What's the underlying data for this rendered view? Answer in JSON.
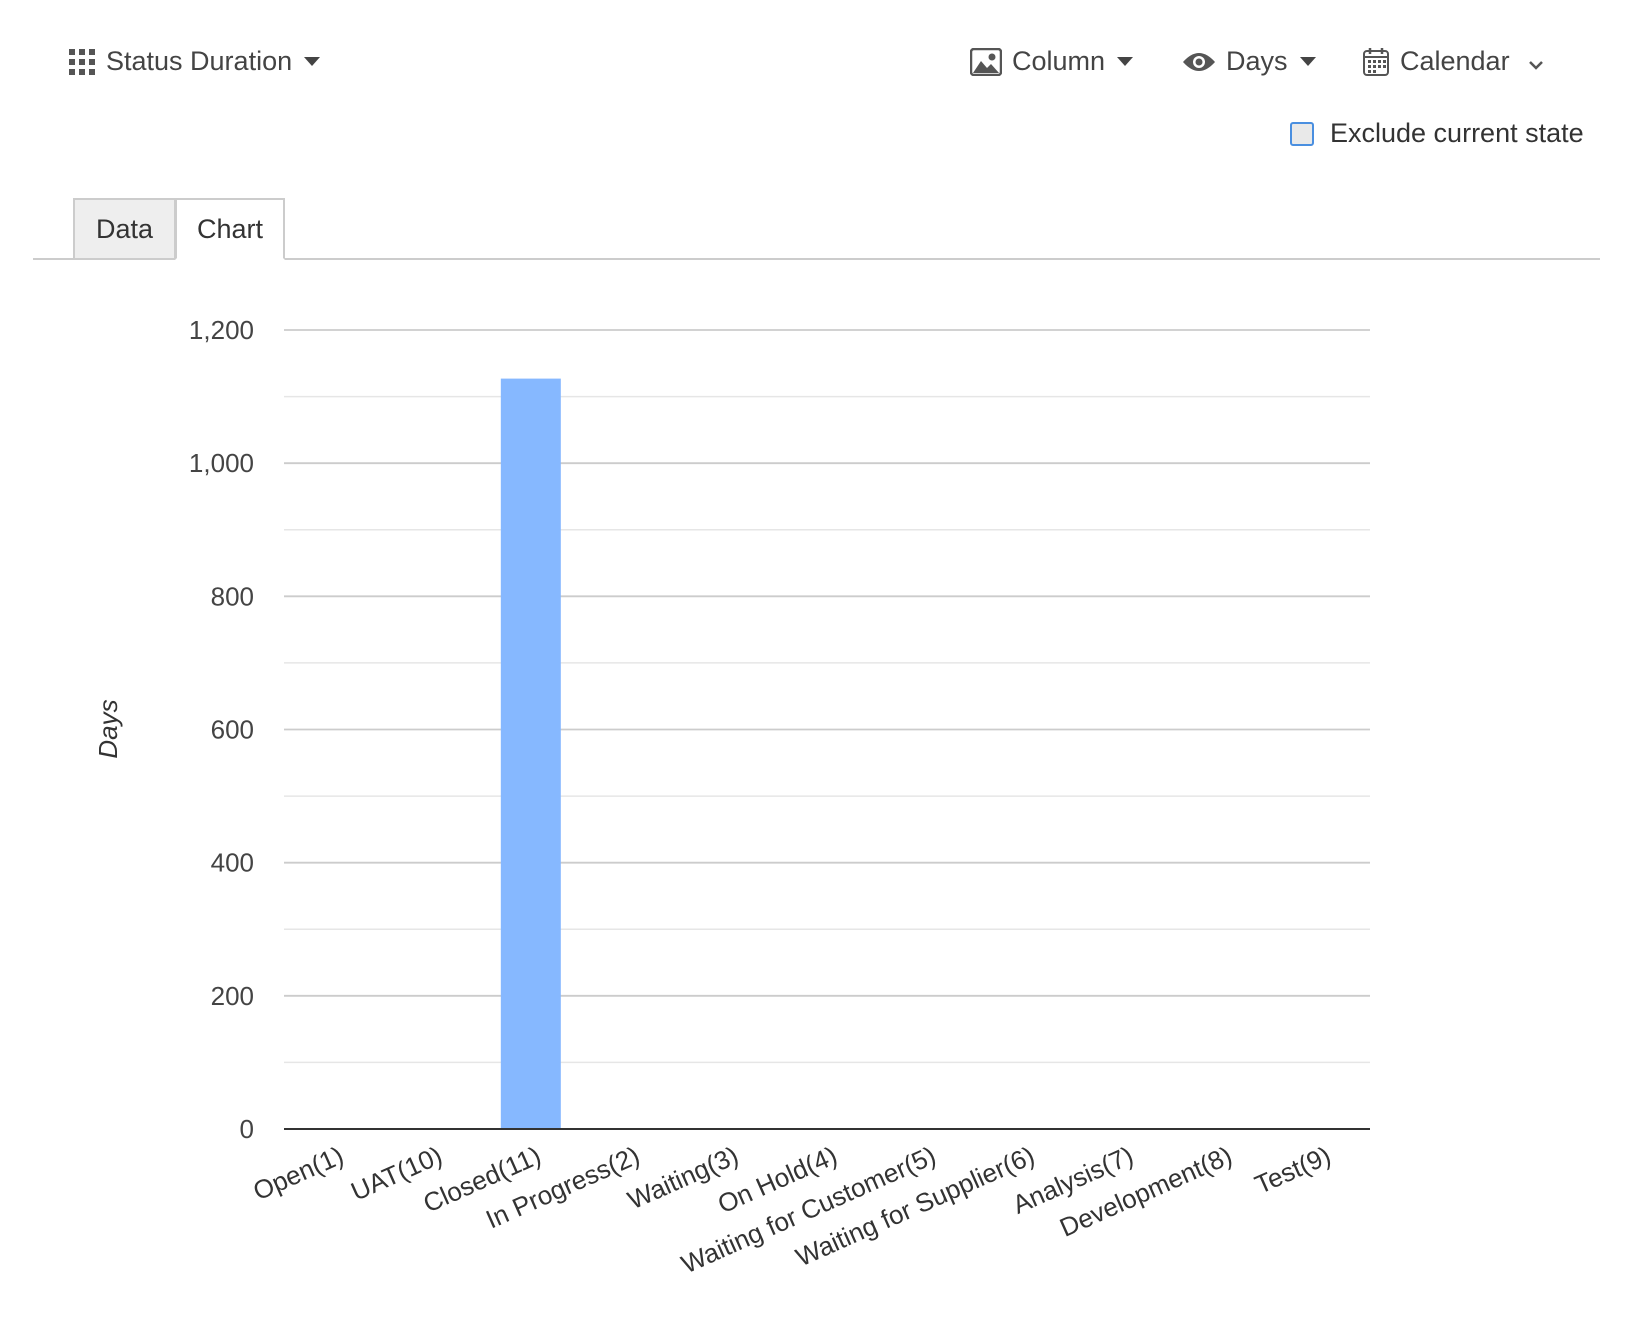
{
  "toolbar": {
    "report_label": "Status Duration",
    "report_icon": "grid-icon",
    "chart_type_label": "Column",
    "chart_type_icon": "image-icon",
    "unit_label": "Days",
    "unit_icon": "eye-icon",
    "calendar_label": "Calendar",
    "calendar_icon": "calendar-icon"
  },
  "exclude_current_state": {
    "label": "Exclude current state",
    "checked": false
  },
  "tabs": [
    {
      "label": "Data",
      "active": false
    },
    {
      "label": "Chart",
      "active": true
    }
  ],
  "colors": {
    "bar": "#86b8ff",
    "grid_major": "#cccccc",
    "grid_minor": "#e6e6e6",
    "axis": "#333333"
  },
  "chart_data": {
    "type": "bar",
    "ylabel": "Days",
    "xlabel": "",
    "ylim": [
      0,
      1200
    ],
    "yticks": [
      0,
      200,
      400,
      600,
      800,
      1000,
      1200
    ],
    "ytick_labels": [
      "0",
      "200",
      "400",
      "600",
      "800",
      "1,000",
      "1,200"
    ],
    "grid": true,
    "categories": [
      "Open(1)",
      "UAT(10)",
      "Closed(11)",
      "In Progress(2)",
      "Waiting(3)",
      "On Hold(4)",
      "Waiting for Customer(5)",
      "Waiting for Supplier(6)",
      "Analysis(7)",
      "Development(8)",
      "Test(9)"
    ],
    "values": [
      0,
      0,
      1127,
      0,
      0,
      0,
      0,
      0,
      0,
      0,
      0
    ]
  }
}
